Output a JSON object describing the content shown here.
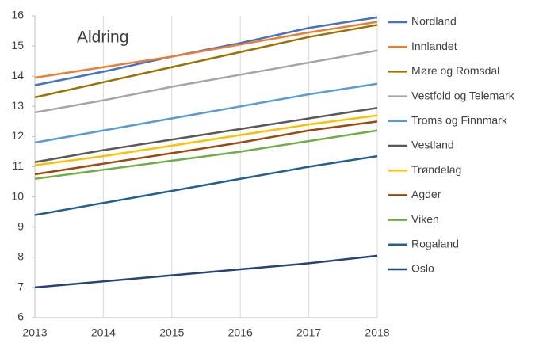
{
  "chart_data": {
    "type": "line",
    "title": "Aldring",
    "x": [
      2013,
      2014,
      2015,
      2016,
      2017,
      2018
    ],
    "xlim": [
      2013,
      2018
    ],
    "xticks": [
      2013,
      2014,
      2015,
      2016,
      2017,
      2018
    ],
    "ylim": [
      6,
      16
    ],
    "yticks": [
      6,
      7,
      8,
      9,
      10,
      11,
      12,
      13,
      14,
      15,
      16
    ],
    "grid": "x",
    "legend": "right",
    "series": [
      {
        "name": "Nordland",
        "color": "#4472c4",
        "values": [
          13.7,
          14.15,
          14.65,
          15.1,
          15.6,
          15.95
        ]
      },
      {
        "name": "Innlandet",
        "color": "#ed7d31",
        "values": [
          13.95,
          14.3,
          14.65,
          15.05,
          15.45,
          15.8
        ]
      },
      {
        "name": "Møre og Romsdal",
        "color": "#997300",
        "values": [
          13.3,
          13.8,
          14.3,
          14.8,
          15.3,
          15.7
        ]
      },
      {
        "name": "Vestfold og Telemark",
        "color": "#a5a5a5",
        "values": [
          12.8,
          13.2,
          13.65,
          14.05,
          14.45,
          14.85
        ]
      },
      {
        "name": "Troms og Finnmark",
        "color": "#5b9bd5",
        "values": [
          11.8,
          12.2,
          12.6,
          13.0,
          13.4,
          13.75
        ]
      },
      {
        "name": "Vestland",
        "color": "#595959",
        "values": [
          11.15,
          11.55,
          11.9,
          12.25,
          12.6,
          12.95
        ]
      },
      {
        "name": "Trøndelag",
        "color": "#ffc000",
        "values": [
          11.05,
          11.35,
          11.7,
          12.05,
          12.4,
          12.7
        ]
      },
      {
        "name": "Agder",
        "color": "#9e480e",
        "values": [
          10.75,
          11.1,
          11.45,
          11.8,
          12.2,
          12.5
        ]
      },
      {
        "name": "Viken",
        "color": "#70ad47",
        "values": [
          10.6,
          10.9,
          11.2,
          11.5,
          11.85,
          12.2
        ]
      },
      {
        "name": "Rogaland",
        "color": "#255e91",
        "values": [
          9.4,
          9.8,
          10.2,
          10.6,
          11.0,
          11.35
        ]
      },
      {
        "name": "Oslo",
        "color": "#264478",
        "values": [
          7.0,
          7.2,
          7.4,
          7.6,
          7.8,
          8.05
        ]
      }
    ]
  }
}
